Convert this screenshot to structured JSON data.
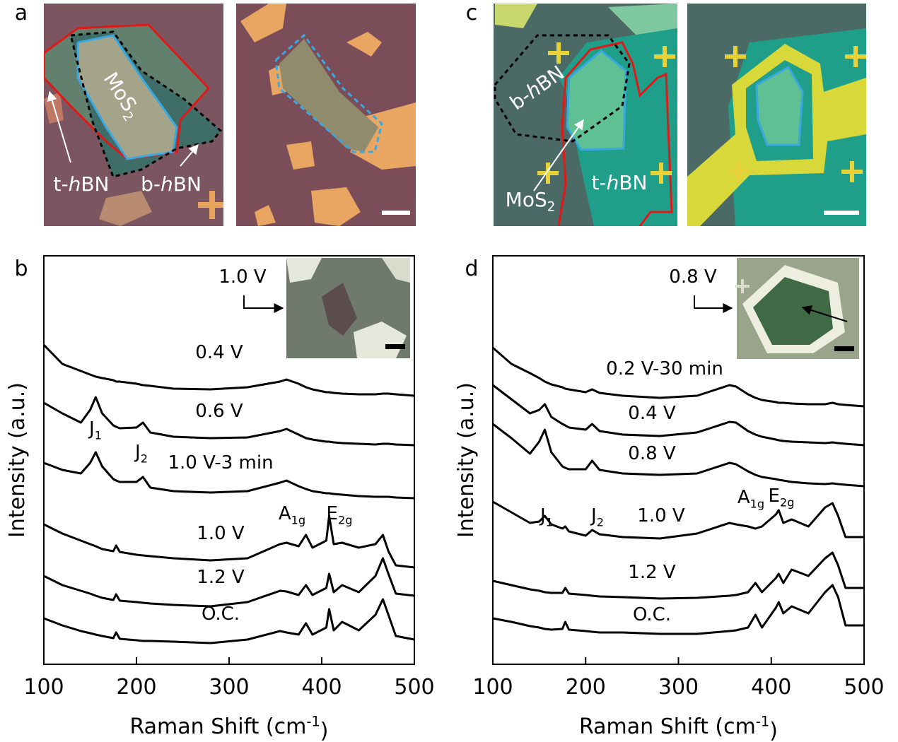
{
  "image_panels": [
    {
      "panel": "a",
      "labels": [
        [
          "MoS",
          "2"
        ],
        [
          "t-",
          "h",
          "BN"
        ],
        [
          "b-",
          "h",
          "BN"
        ]
      ]
    },
    {
      "panel": "c",
      "labels": [
        [
          "b-",
          "h",
          "BN"
        ],
        [
          "MoS",
          "2"
        ],
        [
          "t-",
          "h",
          "BN"
        ]
      ]
    }
  ],
  "chart_data": [
    {
      "type": "line",
      "panel": "b",
      "x_label": [
        "Raman Shift (cm",
        "-1",
        ")"
      ],
      "y_label": "Intensity (a.u.)",
      "xlim": [
        100,
        500
      ],
      "xticks": [
        100,
        200,
        300,
        400,
        500
      ],
      "ylim": [
        0,
        57.8
      ],
      "inset_label": "1.0 V",
      "annotations": [
        {
          "text": "J",
          "sub": "1"
        },
        {
          "text": "J",
          "sub": "2"
        },
        {
          "text": "A",
          "sub": "1g"
        },
        {
          "text": "E",
          "sub": "2g"
        }
      ],
      "x": [
        100,
        120,
        140,
        150,
        156,
        163,
        175,
        178,
        182,
        200,
        207,
        215,
        240,
        280,
        320,
        355,
        362,
        375,
        383,
        390,
        405,
        408,
        413,
        422,
        440,
        458,
        466,
        472,
        480,
        500
      ],
      "series": [
        {
          "name": "0.4 V",
          "color": "#000000",
          "values": [
            45.2,
            42.5,
            41.5,
            41,
            40.7,
            40.5,
            40.2,
            40,
            40,
            39.7,
            39.5,
            39.4,
            39,
            38.9,
            39.2,
            40,
            40.3,
            39.7,
            39.2,
            38.9,
            38.5,
            38.5,
            38.4,
            38.3,
            38.2,
            38.2,
            38.3,
            38.3,
            38.2,
            38
          ]
        },
        {
          "name": "0.6 V",
          "color": "#000000",
          "values": [
            37,
            35.5,
            34.2,
            36,
            37.8,
            35.5,
            33.8,
            33.6,
            33.4,
            33.5,
            34.2,
            32.8,
            32.2,
            32,
            32.1,
            33,
            33.3,
            32.5,
            32,
            31.8,
            31.5,
            31.5,
            31.4,
            31.3,
            31.2,
            31.1,
            31.2,
            31.2,
            31.1,
            31
          ]
        },
        {
          "name": "1.0 V-3 min",
          "color": "#000000",
          "values": [
            28.5,
            27.5,
            27,
            28.5,
            30,
            28,
            26.2,
            26,
            25.8,
            25.8,
            26.5,
            25,
            24.5,
            24.3,
            24.5,
            25.7,
            26,
            25.2,
            24.8,
            24.5,
            24.2,
            24.2,
            24.1,
            24,
            23.8,
            23.7,
            23.7,
            23.7,
            23.6,
            23.5
          ]
        },
        {
          "name": "1.0 V",
          "color": "#000000",
          "values": [
            19.8,
            18.5,
            17.5,
            17,
            16.7,
            16.3,
            16,
            16.8,
            15.9,
            15.5,
            15.4,
            15.3,
            15,
            14.7,
            15,
            17,
            17.2,
            16.7,
            18.3,
            16.5,
            17.5,
            21,
            17,
            17.2,
            16.5,
            17,
            18.3,
            16,
            14,
            13.7
          ]
        },
        {
          "name": "1.2 V",
          "color": "#000000",
          "values": [
            12.5,
            11.2,
            10.4,
            10,
            9.7,
            9.4,
            9.1,
            9.9,
            9,
            8.8,
            8.7,
            8.6,
            8.4,
            8.2,
            8.8,
            10.4,
            10.3,
            9.8,
            11.2,
            9.8,
            10.8,
            12.8,
            10.2,
            11.2,
            10.2,
            12.5,
            15,
            12.8,
            10,
            9.7
          ]
        },
        {
          "name": "O.C.",
          "color": "#000000",
          "values": [
            6.5,
            5.5,
            4.7,
            4.4,
            4.2,
            4,
            3.7,
            4.5,
            3.6,
            3.4,
            3.3,
            3.3,
            3.2,
            3,
            3.5,
            4.7,
            4.5,
            4.2,
            5.8,
            4.2,
            5.2,
            7.8,
            4.8,
            6,
            4.8,
            7,
            9.2,
            7,
            4,
            3.5
          ]
        }
      ]
    },
    {
      "type": "line",
      "panel": "d",
      "x_label": [
        "Raman Shift (cm",
        "-1",
        ")"
      ],
      "y_label": "Intensity (a.u.)",
      "xlim": [
        100,
        500
      ],
      "xticks": [
        100,
        200,
        300,
        400,
        500
      ],
      "ylim": [
        0,
        57.8
      ],
      "inset_label": "0.8 V",
      "annotations": [
        {
          "text": "J",
          "sub": "1"
        },
        {
          "text": "J",
          "sub": "2"
        },
        {
          "text": "A",
          "sub": "1g"
        },
        {
          "text": "E",
          "sub": "2g"
        }
      ],
      "x": [
        100,
        120,
        140,
        150,
        156,
        163,
        175,
        178,
        182,
        200,
        207,
        215,
        240,
        280,
        320,
        355,
        362,
        375,
        383,
        390,
        405,
        408,
        413,
        422,
        440,
        458,
        466,
        472,
        480,
        500
      ],
      "series": [
        {
          "name": "0.2 V-30 min",
          "color": "#000000",
          "values": [
            44.8,
            42.5,
            41.2,
            40.5,
            40,
            39.6,
            39.2,
            39,
            38.9,
            38.5,
            38.9,
            38.4,
            38,
            37.7,
            38,
            39.5,
            39.3,
            38.2,
            37.7,
            37.4,
            37.1,
            37,
            37,
            36.9,
            36.8,
            36.8,
            37,
            36.8,
            36.7,
            36.5
          ]
        },
        {
          "name": "0.4 V",
          "color": "#000000",
          "values": [
            39.5,
            37.5,
            35.5,
            36,
            36.8,
            35,
            34,
            33.8,
            33.5,
            33.2,
            34,
            33,
            32.5,
            32.3,
            32.8,
            34.3,
            34.2,
            33,
            32.5,
            32.2,
            31.8,
            31.7,
            31.6,
            31.5,
            31.4,
            31.3,
            31.4,
            31.3,
            31.2,
            31
          ]
        },
        {
          "name": "0.8 V",
          "color": "#000000",
          "values": [
            34,
            32,
            29.8,
            31.5,
            33.2,
            30,
            28,
            27.8,
            27.6,
            27.6,
            28.8,
            27.5,
            27,
            26.8,
            27,
            28.5,
            28.3,
            27.3,
            26.8,
            26.5,
            26.2,
            26.1,
            26,
            25.8,
            25.6,
            25.5,
            25.6,
            25.5,
            25.4,
            25.2
          ]
        },
        {
          "name": "1.0 V",
          "color": "#000000",
          "values": [
            23,
            21.5,
            20,
            20.2,
            21,
            19.8,
            19.2,
            19.5,
            18.8,
            18.2,
            19,
            18.4,
            18,
            17.8,
            18.5,
            20,
            19.8,
            19.5,
            19.2,
            19.5,
            21.2,
            21.8,
            20,
            20.5,
            19.5,
            22.2,
            22.8,
            21,
            18,
            18
          ]
        },
        {
          "name": "1.2 V",
          "color": "#000000",
          "values": [
            11.8,
            11.2,
            10.6,
            10.4,
            10.2,
            10.1,
            10.1,
            10.8,
            10,
            9.8,
            9.7,
            9.6,
            9.5,
            9.3,
            9.4,
            9.7,
            9.8,
            10.2,
            11.5,
            10.2,
            12.2,
            12.8,
            11.5,
            13.4,
            12.5,
            15,
            15.8,
            14,
            10.8,
            10.8
          ]
        },
        {
          "name": "O.C.",
          "color": "#000000",
          "values": [
            6.5,
            6,
            5.4,
            5.2,
            5,
            4.9,
            5,
            6,
            4.9,
            4.7,
            4.6,
            4.5,
            4.5,
            4.3,
            4.3,
            4.7,
            4.8,
            5.2,
            7,
            5.2,
            8,
            8.8,
            7.2,
            8.2,
            7.2,
            10.2,
            11.2,
            9.5,
            5.5,
            5.5
          ]
        }
      ]
    }
  ]
}
